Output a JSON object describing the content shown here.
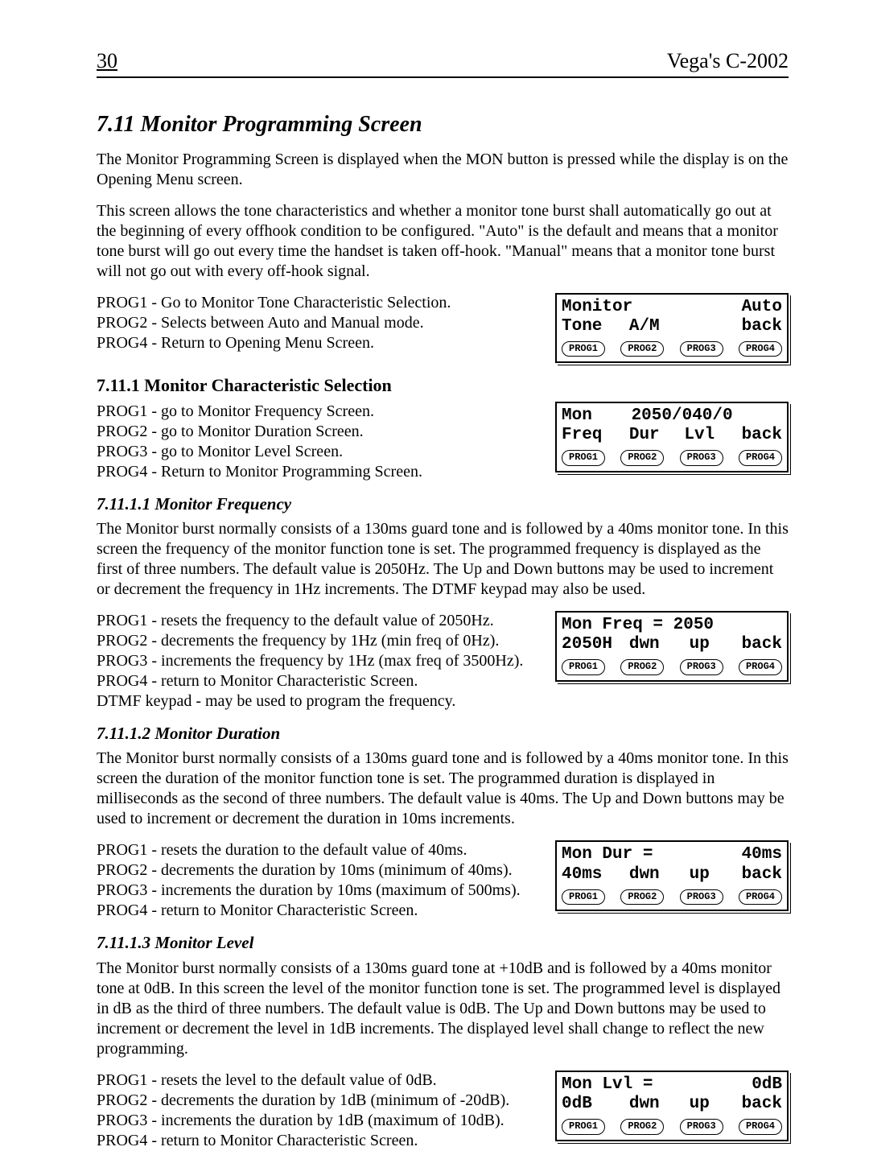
{
  "header": {
    "page_number": "30",
    "doc_title": "Vega's C-2002"
  },
  "section": {
    "number": "7.11",
    "title": "Monitor Programming Screen",
    "intro1": "The Monitor Programming Screen is displayed when the MON button is pressed while the display is on the Opening Menu screen.",
    "intro2": "This screen allows the tone characteristics and whether a monitor tone burst shall automatically go out at the beginning of every offhook condition to be configured.  \"Auto\"  is the default and means that a monitor tone burst will go out every time the handset is taken off-hook.  \"Manual\" means that a monitor tone burst will not go out with every off-hook signal.",
    "prog_main": [
      "PROG1 - Go to Monitor Tone Characteristic Selection.",
      "PROG2 - Selects between Auto and Manual mode.",
      "PROG4 - Return to Opening Menu Screen."
    ]
  },
  "panels": {
    "main": {
      "l1a": "Monitor",
      "l1b": "Auto",
      "l2a": "Tone",
      "l2b": "A/M",
      "l2c": "",
      "l2d": "back",
      "btns": [
        "PROG1",
        "PROG2",
        "PROG3",
        "PROG4"
      ]
    },
    "char": {
      "l1a": "Mon",
      "l1b": "2050/040/0",
      "l2a": "Freq",
      "l2b": "Dur",
      "l2c": "Lvl",
      "l2d": "back",
      "btns": [
        "PROG1",
        "PROG2",
        "PROG3",
        "PROG4"
      ]
    },
    "freq": {
      "l1a": "Mon Freq = 2050",
      "l1b": "",
      "l2a": "2050H",
      "l2b": "dwn",
      "l2c": "up",
      "l2d": "back",
      "btns": [
        "PROG1",
        "PROG2",
        "PROG3",
        "PROG4"
      ]
    },
    "dur": {
      "l1a": "Mon Dur =",
      "l1b": "40ms",
      "l2a": "40ms",
      "l2b": "dwn",
      "l2c": "up",
      "l2d": "back",
      "btns": [
        "PROG1",
        "PROG2",
        "PROG3",
        "PROG4"
      ]
    },
    "lvl": {
      "l1a": "Mon Lvl =",
      "l1b": "0dB",
      "l2a": "0dB",
      "l2b": "dwn",
      "l2c": "up",
      "l2d": "back",
      "btns": [
        "PROG1",
        "PROG2",
        "PROG3",
        "PROG4"
      ]
    }
  },
  "sub_char": {
    "heading": "7.11.1  Monitor Characteristic Selection",
    "lines": [
      "PROG1 - go to Monitor Frequency Screen.",
      "PROG2 - go to Monitor Duration Screen.",
      "PROG3 - go to Monitor Level Screen.",
      "PROG4 - Return to Monitor Programming Screen."
    ]
  },
  "sub_freq": {
    "heading": "7.11.1.1 Monitor Frequency",
    "para": "The Monitor burst normally consists of a 130ms guard tone and is followed by a 40ms monitor tone.  In this screen the frequency of the monitor function tone is set.  The programmed frequency is displayed as the first of three numbers.  The default value is 2050Hz.  The Up and Down buttons may be used to increment or decrement the frequency in 1Hz increments.  The DTMF keypad may also be used.",
    "lines": [
      "PROG1 - resets the frequency to the default value of 2050Hz.",
      "PROG2 - decrements the frequency by 1Hz (min freq of 0Hz).",
      "PROG3 - increments the frequency by 1Hz (max freq of 3500Hz).",
      "PROG4 - return to Monitor Characteristic Screen.",
      "DTMF keypad - may be used to program the frequency."
    ]
  },
  "sub_dur": {
    "heading": "7.11.1.2 Monitor Duration",
    "para": "The Monitor burst normally consists of a 130ms guard tone and is followed by a 40ms monitor tone.  In this screen the duration of the monitor function tone is set.  The programmed duration is displayed in milliseconds as the second of three numbers.  The default value is 40ms.  The Up and Down buttons may be used to increment or decrement the duration in 10ms increments.",
    "lines": [
      "PROG1 - resets the duration to the default value of 40ms.",
      "PROG2 - decrements the duration by 10ms (minimum of 40ms).",
      "PROG3 - increments the duration by 10ms (maximum of 500ms).",
      "PROG4 - return to Monitor Characteristic Screen."
    ]
  },
  "sub_lvl": {
    "heading": "7.11.1.3 Monitor Level",
    "para": "The Monitor burst normally consists of a 130ms guard tone at +10dB and is followed by a 40ms monitor tone at 0dB.  In this screen the level of the monitor function tone is set.  The programmed level is displayed in dB as the third of three numbers.  The default value is 0dB.  The Up and Down buttons may be used to increment or decrement the level in 1dB increments.  The displayed level shall change to reflect the new programming.",
    "lines": [
      "PROG1 - resets the level to the default value of  0dB.",
      "PROG2 - decrements the duration by 1dB (minimum of -20dB).",
      "PROG3 - increments the duration by 1dB (maximum of 10dB).",
      "PROG4 - return to Monitor Characteristic Screen."
    ]
  }
}
